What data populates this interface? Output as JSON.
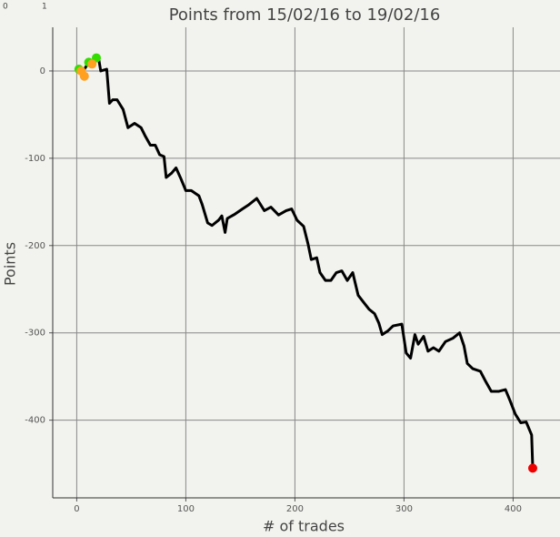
{
  "top_ruler": [
    "0",
    "1"
  ],
  "chart_data": {
    "type": "line",
    "title": "Points from 15/02/16 to 19/02/16",
    "xlabel": "# of trades",
    "ylabel": "Points",
    "xlim": [
      -22,
      443
    ],
    "ylim": [
      -489,
      50
    ],
    "xticks": [
      0,
      100,
      200,
      300,
      400
    ],
    "yticks": [
      0,
      -100,
      -200,
      -300,
      -400
    ],
    "grid": true,
    "series": [
      {
        "type": "line",
        "color": "#000000",
        "x": [
          0,
          5,
          10,
          15,
          20,
          22,
          27.5,
          30,
          33,
          37,
          42.5,
          47,
          53,
          59,
          63,
          67.5,
          72,
          76,
          80,
          82,
          87,
          91,
          95,
          100,
          105,
          112,
          115,
          120,
          124,
          130,
          133,
          136,
          138,
          145,
          152,
          158,
          165,
          172,
          178,
          185,
          192,
          197,
          202,
          208,
          212,
          215,
          220,
          223,
          228,
          233,
          238,
          243,
          248,
          253,
          258,
          263,
          268,
          273,
          277,
          280,
          285,
          290,
          298,
          302,
          306,
          310,
          313,
          318,
          322,
          327,
          332,
          338,
          345,
          351,
          355,
          358,
          363,
          370,
          375,
          380,
          387,
          393,
          397,
          402,
          407,
          412,
          417,
          418
        ],
        "values": [
          0,
          -2,
          8,
          12,
          15,
          0,
          2,
          -37,
          -33,
          -33,
          -44,
          -65,
          -60,
          -65,
          -75,
          -85,
          -85,
          -96,
          -98,
          -122,
          -117,
          -111,
          -122,
          -137,
          -137,
          -143,
          -153,
          -174,
          -177,
          -171,
          -166,
          -185,
          -169,
          -164,
          -158,
          -153,
          -146,
          -160,
          -156,
          -165,
          -160,
          -158,
          -171,
          -178,
          -198,
          -216,
          -214,
          -231,
          -240,
          -240,
          -231,
          -229,
          -240,
          -231,
          -257,
          -265,
          -273,
          -278,
          -289,
          -302,
          -298,
          -292,
          -290,
          -323,
          -329,
          -302,
          -313,
          -304,
          -321,
          -317,
          -321,
          -310,
          -306,
          -300,
          -315,
          -335,
          -341,
          -344,
          -356,
          -367,
          -367,
          -365,
          -377,
          -393,
          -403,
          -402,
          -417,
          -454
        ]
      },
      {
        "type": "scatter",
        "color": "#33dd00",
        "x": [
          2,
          11,
          18
        ],
        "values": [
          2,
          10,
          15
        ]
      },
      {
        "type": "scatter",
        "color": "#ffa020",
        "x": [
          4,
          7,
          14
        ],
        "values": [
          0,
          -6,
          8
        ]
      },
      {
        "type": "scatter",
        "color": "#ee0000",
        "x": [
          418
        ],
        "values": [
          -455
        ]
      }
    ]
  }
}
